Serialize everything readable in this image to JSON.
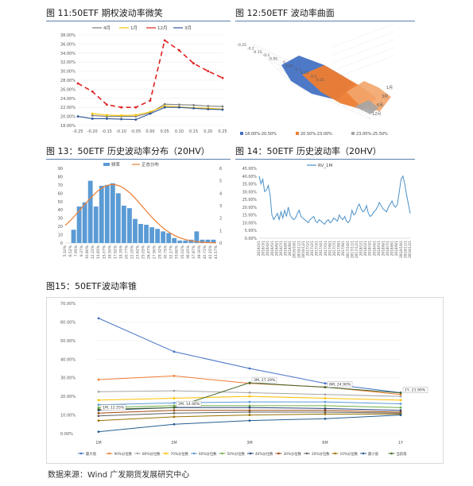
{
  "source": "数据来源：Wind 广发期货发展研究中心",
  "chart_data": [
    {
      "id": "fig11",
      "type": "line",
      "title": "图 11:50ETF 期权波动率微笑",
      "x": [
        -0.25,
        -0.2,
        -0.15,
        -0.1,
        -0.05,
        0,
        0.05,
        0.1,
        0.15,
        0.2,
        0.25
      ],
      "xticks": [
        "-0.25",
        "-0.20",
        "-0.15",
        "-0.10",
        "-0.05",
        "0.00",
        "0.05",
        "0.10",
        "0.15",
        "0.20",
        "0.25"
      ],
      "ylim": [
        18,
        38
      ],
      "yticks": [
        "18.00%",
        "20.00%",
        "22.00%",
        "24.00%",
        "26.00%",
        "28.00%",
        "30.00%",
        "32.00%",
        "34.00%",
        "36.00%",
        "38.00%"
      ],
      "series": [
        {
          "name": "4月",
          "color": "#7f7f7f",
          "dash": "",
          "values": [
            null,
            20.2,
            20.0,
            20.0,
            20.0,
            20.8,
            22.7,
            22.6,
            22.5,
            22.3,
            22.2
          ]
        },
        {
          "name": "1月",
          "color": "#f5c400",
          "dash": "",
          "values": [
            null,
            20.6,
            20.3,
            20.2,
            20.3,
            21.0,
            22.3,
            22.1,
            21.9,
            21.8,
            21.6
          ]
        },
        {
          "name": "12月",
          "color": "#e02020",
          "dash": "6,4",
          "values": [
            27.3,
            25.5,
            22.6,
            22.0,
            22.0,
            23.5,
            36.8,
            34.6,
            31.7,
            30.0,
            28.5
          ]
        },
        {
          "name": "3月",
          "color": "#2f5597",
          "dash": "",
          "values": [
            20.0,
            19.5,
            19.5,
            19.4,
            19.3,
            20.6,
            22.0,
            22.0,
            21.8,
            21.6,
            21.5
          ]
        }
      ]
    },
    {
      "id": "fig12",
      "type": "area",
      "title": "图 12:50ETF 波动率曲面",
      "xticks": [
        "-0.25",
        "-0.2",
        "-0.15",
        "-0.1",
        "-0.05",
        "0",
        "0.05",
        "0.1",
        "0.15",
        "0.2",
        "0.25"
      ],
      "depth": [
        "1月",
        "3月",
        "6月",
        "12月"
      ],
      "legend": [
        "18.00%-20.50%",
        "20.50%-23.00%",
        "23.00%-25.50%"
      ],
      "colors": [
        "#4472c4",
        "#ed7d31",
        "#a5a5a5"
      ]
    },
    {
      "id": "fig13",
      "type": "bar",
      "title": "图 13：50ETF 历史波动率分布（20HV）",
      "categories": [
        "5.10%",
        "6.52%",
        "7.95%",
        "9.37%",
        "10.80%",
        "12.22%",
        "13.65%",
        "15.07%",
        "16.50%",
        "17.92%",
        "19.35%",
        "20.77%",
        "22.20%",
        "23.62%",
        "25.05%",
        "26.47%",
        "27.90%",
        "29.32%",
        "30.75%",
        "32.17%",
        "33.60%",
        "35.02%",
        "36.45%",
        "37.87%",
        "39.30%",
        "40.72%",
        "42.15%"
      ],
      "xticks": [
        "5.10%",
        "6.52%",
        "7.95%",
        "9.37%",
        "10.80%",
        "12.22%",
        "13.65%",
        "15.07%",
        "16.50%",
        "17.92%",
        "19.35%",
        "20.77%",
        "22.20%",
        "23.62%",
        "25.05%",
        "26.47%",
        "27.90%",
        "29.32%",
        "30.75%",
        "32.17%",
        "33.60%",
        "35.02%",
        "36.45%",
        "37.87%",
        "39.30%",
        "40.72%",
        "42.15%",
        "43.57%"
      ],
      "values": [
        0,
        16,
        44,
        49,
        75,
        44,
        69,
        70,
        72,
        60,
        45,
        42,
        29,
        23,
        22,
        19,
        17,
        14,
        12,
        6,
        3,
        3,
        4,
        14,
        4,
        4,
        4
      ],
      "ylim": [
        0,
        90
      ],
      "yticks": [
        "0",
        "10",
        "20",
        "30",
        "40",
        "50",
        "60",
        "70",
        "80",
        "90"
      ],
      "y2lim": [
        0,
        6
      ],
      "y2ticks": [
        "0",
        "1",
        "2",
        "3",
        "4",
        "5",
        "6"
      ],
      "legend": [
        "频率",
        "正态分布"
      ],
      "curve": {
        "mean": 17.2,
        "sd": 7.8,
        "peak": 4.7
      }
    },
    {
      "id": "fig14",
      "type": "line",
      "title": "图 14：50ETF 历史波动率（20HV）",
      "xticks": [
        "2016/2/1",
        "2016/3/1",
        "2016/4/1",
        "2016/5/1",
        "2016/6/1",
        "2016/7/1",
        "2016/8/1",
        "2016/9/1",
        "2016/10/1",
        "2016/11/1",
        "2016/12/1",
        "2017/1/1",
        "2017/2/1",
        "2017/3/1",
        "2017/4/1",
        "2017/5/1",
        "2017/6/1",
        "2017/7/1",
        "2017/8/1",
        "2017/9/1",
        "2017/10/1",
        "2017/11/1",
        "2017/12/1",
        "2018/1/1",
        "2018/2/1",
        "2018/3/1",
        "2018/4/1",
        "2018/5/1",
        "2018/6/1",
        "2018/7/1",
        "2018/8/1",
        "2018/9/1",
        "2018/10/1",
        "2018/11/1",
        "2018/12/1"
      ],
      "ylim": [
        0,
        45
      ],
      "yticks": [
        "0.00%",
        "5.00%",
        "10.00%",
        "15.00%",
        "20.00%",
        "25.00%",
        "30.00%",
        "35.00%",
        "40.00%",
        "45.00%"
      ],
      "series": [
        {
          "name": "RV_1M",
          "color": "#4a90c8",
          "values": [
            40,
            35,
            38,
            30,
            31,
            34,
            28,
            15,
            12,
            14,
            16,
            12,
            17,
            13,
            18,
            14,
            20,
            15,
            13,
            12,
            13,
            16,
            18,
            14,
            13,
            12,
            11,
            10,
            12,
            13,
            14,
            11,
            10,
            12,
            11,
            10,
            9,
            11,
            12,
            10,
            11,
            13,
            12,
            11,
            15,
            13,
            12,
            14,
            11,
            10,
            12,
            18,
            15,
            16,
            20,
            22,
            19,
            17,
            18,
            21,
            16,
            14,
            15,
            17,
            18,
            20,
            23,
            21,
            19,
            18,
            17,
            20,
            22,
            24,
            21,
            20,
            22,
            30,
            38,
            40,
            35,
            28,
            22,
            16
          ]
        }
      ]
    },
    {
      "id": "fig15",
      "type": "line",
      "title": "图15：50ETF波动率锥",
      "categories": [
        "1M",
        "2M",
        "3M",
        "6M",
        "1Y"
      ],
      "ylim": [
        0,
        70
      ],
      "yticks": [
        "0.00%",
        "10.00%",
        "20.00%",
        "30.00%",
        "40.00%",
        "50.00%",
        "60.00%",
        "70.00%"
      ],
      "series": [
        {
          "name": "最大值",
          "color": "#4472c4",
          "values": [
            62,
            44,
            35,
            27,
            22
          ]
        },
        {
          "name": "90%分位数",
          "color": "#ed7d31",
          "values": [
            29,
            31,
            27,
            25,
            21
          ]
        },
        {
          "name": "80%分位数",
          "color": "#a5a5a5",
          "values": [
            22.5,
            23,
            22,
            21,
            20
          ]
        },
        {
          "name": "70%分位数",
          "color": "#ffc000",
          "values": [
            18,
            19,
            20,
            19,
            18
          ]
        },
        {
          "name": "60%分位数",
          "color": "#5b9bd5",
          "values": [
            15.5,
            16.5,
            17,
            17,
            16
          ]
        },
        {
          "name": "50%分位数",
          "color": "#70ad47",
          "values": [
            14,
            15,
            15,
            15,
            14
          ]
        },
        {
          "name": "40%分位数",
          "color": "#264478",
          "values": [
            12.5,
            14,
            14,
            13.5,
            12.5
          ]
        },
        {
          "name": "30%分位数",
          "color": "#9e480e",
          "values": [
            11,
            12.5,
            12.5,
            12.5,
            11.5
          ]
        },
        {
          "name": "20%分位数",
          "color": "#636363",
          "values": [
            9.5,
            11,
            11.5,
            11.5,
            11
          ]
        },
        {
          "name": "10%分位数",
          "color": "#997300",
          "values": [
            7,
            9,
            10,
            10.5,
            10.5
          ]
        },
        {
          "name": "最小值",
          "color": "#255e91",
          "values": [
            1,
            5,
            7,
            8,
            10
          ]
        },
        {
          "name": "当前值",
          "color": "#43682b",
          "values": [
            13,
            14,
            27.29,
            24.9,
            21.9
          ]
        }
      ],
      "annotations": [
        {
          "text": "1M, 12.55%"
        },
        {
          "text": "2M, 14.46%"
        },
        {
          "text": "3M, 27.29%"
        },
        {
          "text": "6M, 24.90%"
        },
        {
          "text": "1Y, 21.90%"
        }
      ]
    }
  ]
}
